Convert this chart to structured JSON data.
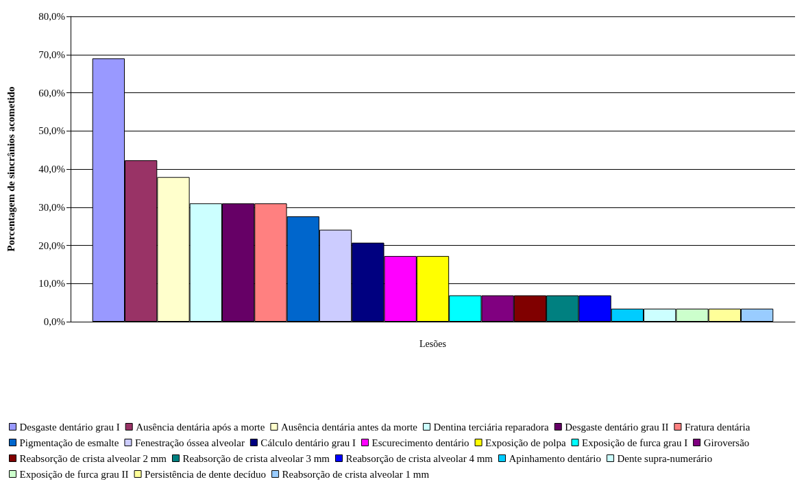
{
  "chart_data": {
    "type": "bar",
    "xlabel": "Lesões",
    "ylabel": "Porcentagem de sincrânios acometido",
    "categories": [
      null
    ],
    "ylim": [
      0,
      80
    ],
    "yticks": [
      {
        "value": 0,
        "label": "0,0%"
      },
      {
        "value": 10,
        "label": "10,0%"
      },
      {
        "value": 20,
        "label": "20,0%"
      },
      {
        "value": 30,
        "label": "30,0%"
      },
      {
        "value": 40,
        "label": "40,0%"
      },
      {
        "value": 50,
        "label": "50,0%"
      },
      {
        "value": 60,
        "label": "60,0%"
      },
      {
        "value": 70,
        "label": "70,0%"
      },
      {
        "value": 80,
        "label": "80,0%"
      }
    ],
    "grid": "y",
    "legend": "bottom",
    "series": [
      {
        "name": "Desgaste dentário grau I",
        "color": "#9999ff",
        "values": [
          69.0
        ]
      },
      {
        "name": "Ausência dentária após a morte",
        "color": "#993366",
        "values": [
          42.3
        ]
      },
      {
        "name": "Ausência dentária antes da morte",
        "color": "#ffffcc",
        "values": [
          37.9
        ]
      },
      {
        "name": "Dentina terciária reparadora",
        "color": "#ccffff",
        "values": [
          31.0
        ]
      },
      {
        "name": "Desgaste dentário grau II",
        "color": "#660066",
        "values": [
          31.0
        ]
      },
      {
        "name": "Fratura dentária",
        "color": "#ff8080",
        "values": [
          31.0
        ]
      },
      {
        "name": "Pigmentação de esmalte",
        "color": "#0066cc",
        "values": [
          27.6
        ]
      },
      {
        "name": "Fenestração óssea alveolar",
        "color": "#ccccff",
        "values": [
          24.1
        ]
      },
      {
        "name": "Cálculo dentário grau I",
        "color": "#000080",
        "values": [
          20.7
        ]
      },
      {
        "name": "Escurecimento dentário",
        "color": "#ff00ff",
        "values": [
          17.2
        ]
      },
      {
        "name": "Exposição de polpa",
        "color": "#ffff00",
        "values": [
          17.2
        ]
      },
      {
        "name": "Exposição de furca grau I",
        "color": "#00ffff",
        "values": [
          6.9
        ]
      },
      {
        "name": "Giroversão",
        "color": "#800080",
        "values": [
          6.9
        ]
      },
      {
        "name": "Reabsorção de crista alveolar 2 mm",
        "color": "#800000",
        "values": [
          6.9
        ]
      },
      {
        "name": "Reabsorção de crista alveolar 3 mm",
        "color": "#008080",
        "values": [
          6.9
        ]
      },
      {
        "name": "Reabsorção de crista alveolar 4 mm",
        "color": "#0000ff",
        "values": [
          6.9
        ]
      },
      {
        "name": "Apinhamento dentário",
        "color": "#00ccff",
        "values": [
          3.4
        ]
      },
      {
        "name": "Dente supra-numerário",
        "color": "#ccffff",
        "values": [
          3.4
        ]
      },
      {
        "name": "Exposição de furca grau II",
        "color": "#ccffcc",
        "values": [
          3.4
        ]
      },
      {
        "name": "Persistência de dente decíduo",
        "color": "#ffff99",
        "values": [
          3.4
        ]
      },
      {
        "name": "Reabsorção de crista alveolar 1 mm",
        "color": "#99ccff",
        "values": [
          3.4
        ]
      }
    ]
  }
}
